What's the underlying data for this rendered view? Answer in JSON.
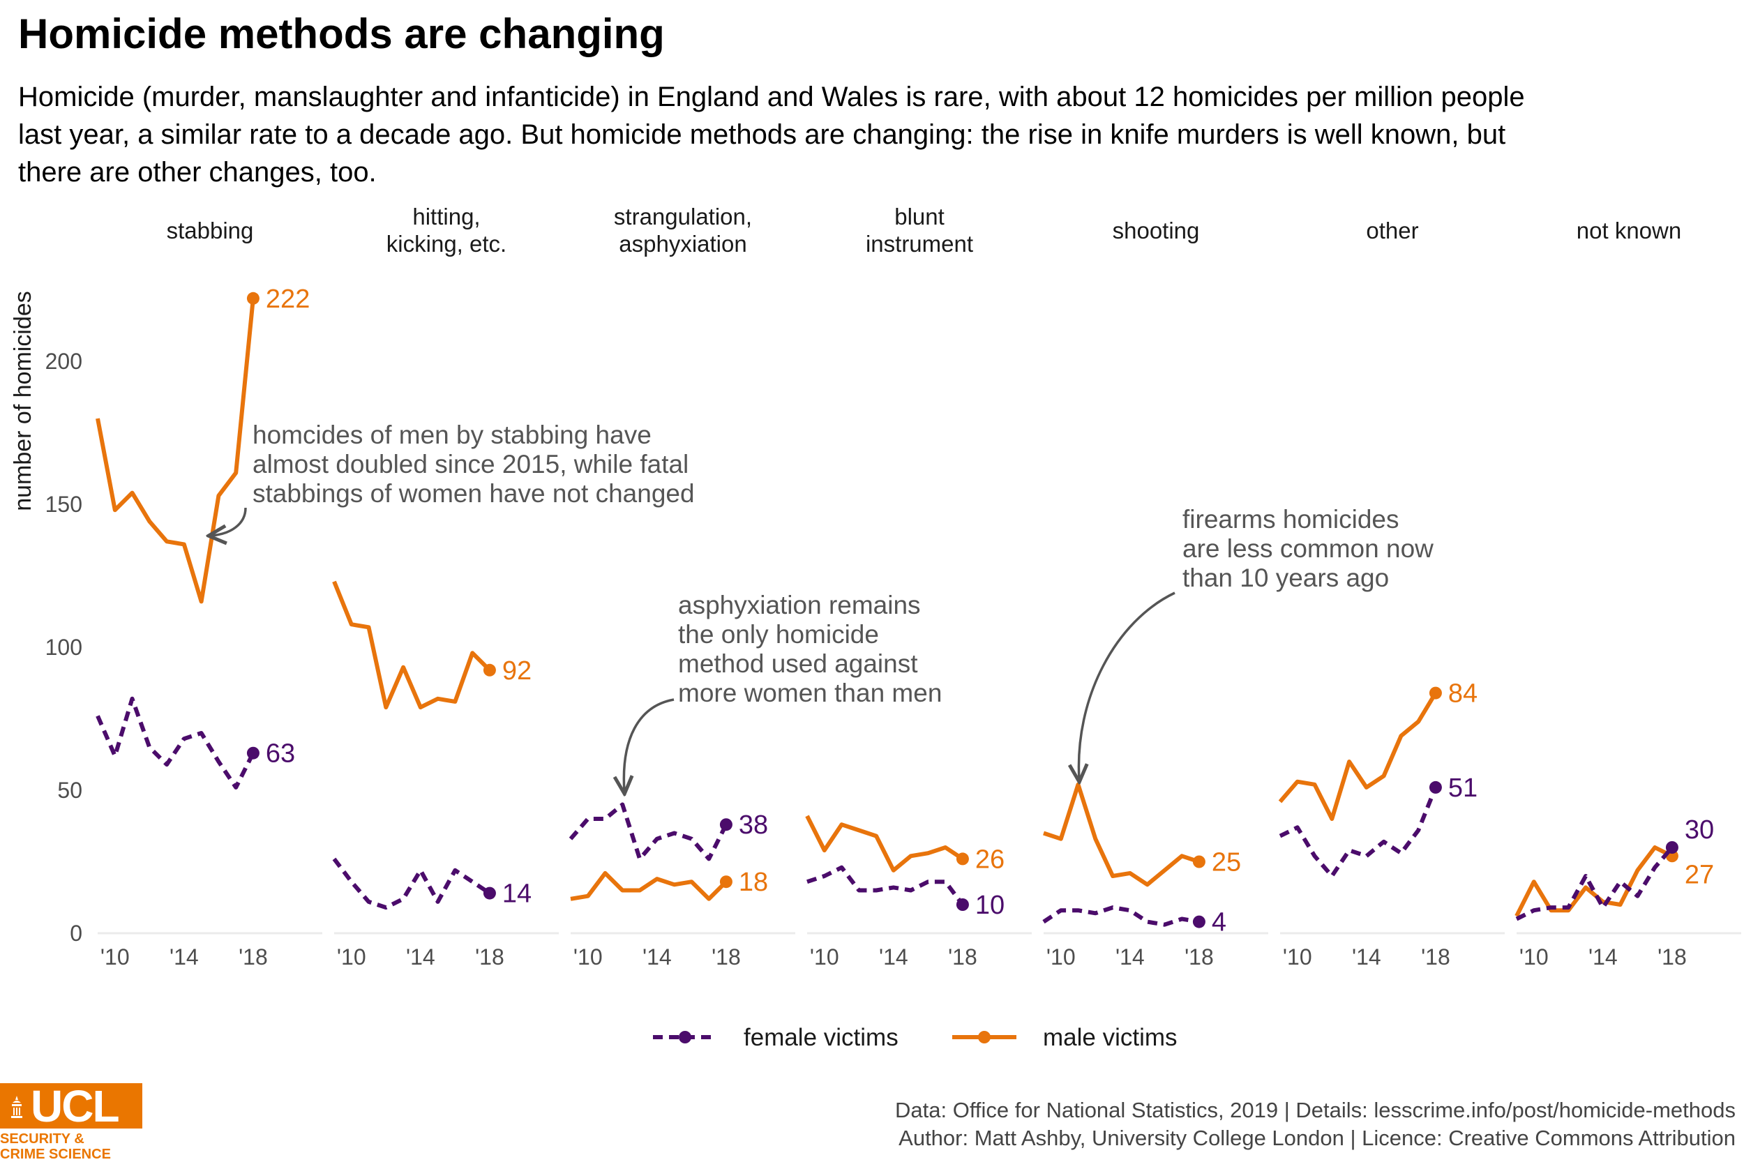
{
  "title": "Homicide methods are changing",
  "subtitle": "Homicide (murder, manslaughter and infanticide) in England and Wales is rare, with about 12 homicides per million people last year, a similar rate to a decade ago. But homicide methods are changing: the rise in knife murders is well known, but there are other changes, too.",
  "caption": {
    "line1": "Data: Office for National Statistics, 2019 |  Details: lesscrime.info/post/homicide-methods",
    "line2": "Author: Matt Ashby, University College London |  Licence: Creative Commons Attribution"
  },
  "logo": {
    "brand": "UCL",
    "subtitle": "SECURITY &\nCRIME SCIENCE"
  },
  "colors": {
    "female": "#4b0c6b",
    "male": "#e8740c",
    "annotation": "#555555",
    "axis_line": "#ebebeb"
  },
  "chart_data": {
    "type": "line",
    "ylabel": "number of homicides",
    "ylim": [
      0,
      230
    ],
    "yticks": [
      0,
      50,
      100,
      150,
      200
    ],
    "xlim": [
      2009,
      2022
    ],
    "xticks": [
      2010,
      2014,
      2018
    ],
    "xtick_labels": [
      "'10",
      "'14",
      "'18"
    ],
    "x": [
      2009,
      2010,
      2011,
      2012,
      2013,
      2014,
      2015,
      2016,
      2017,
      2018
    ],
    "legend": [
      {
        "key": "female",
        "label": "female victims",
        "style": "dashed"
      },
      {
        "key": "male",
        "label": "male victims",
        "style": "solid"
      }
    ],
    "legend_position": "bottom",
    "panels": [
      {
        "label": "stabbing",
        "female": [
          76,
          62,
          82,
          65,
          59,
          68,
          70,
          60,
          51,
          63
        ],
        "male": [
          180,
          148,
          154,
          144,
          137,
          136,
          116,
          153,
          161,
          222
        ],
        "female_end_label": "63",
        "male_end_label": "222"
      },
      {
        "label": "hitting,\nkicking, etc.",
        "female": [
          26,
          18,
          11,
          9,
          12,
          22,
          11,
          22,
          18,
          14
        ],
        "male": [
          123,
          108,
          107,
          79,
          93,
          79,
          82,
          81,
          98,
          92
        ],
        "female_end_label": "14",
        "male_end_label": "92"
      },
      {
        "label": "strangulation,\nasphyxiation",
        "female": [
          33,
          40,
          40,
          45,
          26,
          33,
          35,
          33,
          26,
          38
        ],
        "male": [
          12,
          13,
          21,
          15,
          15,
          19,
          17,
          18,
          12,
          18
        ],
        "female_end_label": "38",
        "male_end_label": "18"
      },
      {
        "label": "blunt\ninstrument",
        "female": [
          18,
          20,
          23,
          15,
          15,
          16,
          15,
          18,
          18,
          10
        ],
        "male": [
          41,
          29,
          38,
          36,
          34,
          22,
          27,
          28,
          30,
          26
        ],
        "female_end_label": "10",
        "male_end_label": "26"
      },
      {
        "label": "shooting",
        "female": [
          4,
          8,
          8,
          7,
          9,
          8,
          4,
          3,
          5,
          4
        ],
        "male": [
          35,
          33,
          52,
          33,
          20,
          21,
          17,
          22,
          27,
          25
        ],
        "female_end_label": "4",
        "male_end_label": "25"
      },
      {
        "label": "other",
        "female": [
          34,
          37,
          27,
          20,
          29,
          27,
          32,
          28,
          36,
          51
        ],
        "male": [
          46,
          53,
          52,
          40,
          60,
          51,
          55,
          69,
          74,
          84
        ],
        "female_end_label": "51",
        "male_end_label": "84"
      },
      {
        "label": "not known",
        "female": [
          5,
          8,
          9,
          9,
          20,
          9,
          18,
          13,
          23,
          30
        ],
        "male": [
          6,
          18,
          8,
          8,
          16,
          11,
          10,
          22,
          30,
          27
        ],
        "female_end_label": "30",
        "male_end_label": "27"
      }
    ],
    "annotations": [
      {
        "panel": 0,
        "text": [
          "homcides of men by stabbing have",
          "almost doubled since 2015, while fatal",
          "stabbings of women have not changed"
        ]
      },
      {
        "panel": 2,
        "text": [
          "asphyxiation remains",
          "the only homicide",
          "method used against",
          "more women than men"
        ]
      },
      {
        "panel": 4,
        "text": [
          "firearms homicides",
          "are less common now",
          "than 10 years ago"
        ]
      }
    ]
  }
}
